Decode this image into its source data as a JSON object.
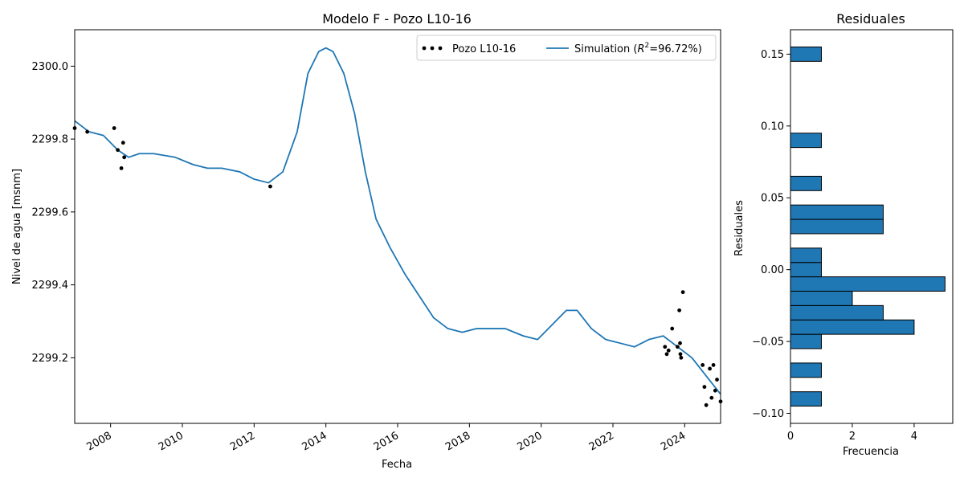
{
  "chart_data": [
    {
      "type": "line",
      "title": "Modelo F - Pozo L10-16",
      "xlabel": "Fecha",
      "ylabel": "Nivel de agua [msnm]",
      "xlim": [
        2007.0,
        2025.0
      ],
      "ylim": [
        2299.02,
        2300.1
      ],
      "x_ticks": [
        "2008",
        "2010",
        "2012",
        "2014",
        "2016",
        "2018",
        "2020",
        "2022",
        "2024"
      ],
      "y_ticks": [
        "2299.2",
        "2299.4",
        "2299.6",
        "2299.8",
        "2300.0"
      ],
      "legend": {
        "position": "top-right",
        "items": [
          "Pozo L10-16",
          "Simulation ($R^2$=96.72%)"
        ]
      },
      "series": [
        {
          "name": "Pozo L10-16",
          "kind": "scatter",
          "color": "#000000",
          "x": [
            2007.0,
            2007.35,
            2008.1,
            2008.2,
            2008.3,
            2008.35,
            2008.38,
            2012.45,
            2023.45,
            2023.5,
            2023.55,
            2023.65,
            2023.8,
            2023.85,
            2023.87,
            2023.88,
            2023.9,
            2023.95,
            2024.5,
            2024.55,
            2024.6,
            2024.7,
            2024.75,
            2024.8,
            2024.85,
            2024.9,
            2025.0
          ],
          "y": [
            2299.83,
            2299.82,
            2299.83,
            2299.77,
            2299.72,
            2299.79,
            2299.75,
            2299.67,
            2299.23,
            2299.21,
            2299.22,
            2299.28,
            2299.23,
            2299.33,
            2299.24,
            2299.21,
            2299.2,
            2299.38,
            2299.18,
            2299.12,
            2299.07,
            2299.17,
            2299.09,
            2299.18,
            2299.11,
            2299.14,
            2299.08
          ]
        },
        {
          "name": "Simulation ($R^2$=96.72%)",
          "kind": "line",
          "color": "#1f77b4",
          "x": [
            2007.0,
            2007.4,
            2007.8,
            2008.2,
            2008.5,
            2008.8,
            2009.2,
            2009.8,
            2010.3,
            2010.7,
            2011.1,
            2011.6,
            2012.0,
            2012.4,
            2012.8,
            2013.2,
            2013.5,
            2013.8,
            2014.0,
            2014.2,
            2014.5,
            2014.8,
            2015.1,
            2015.4,
            2015.8,
            2016.2,
            2016.6,
            2017.0,
            2017.4,
            2017.8,
            2018.2,
            2018.6,
            2019.0,
            2019.5,
            2019.9,
            2020.3,
            2020.7,
            2021.0,
            2021.4,
            2021.8,
            2022.2,
            2022.6,
            2023.0,
            2023.4,
            2023.8,
            2024.2,
            2024.6,
            2025.0
          ],
          "y": [
            2299.85,
            2299.82,
            2299.81,
            2299.77,
            2299.75,
            2299.76,
            2299.76,
            2299.75,
            2299.73,
            2299.72,
            2299.72,
            2299.71,
            2299.69,
            2299.68,
            2299.71,
            2299.82,
            2299.98,
            2300.04,
            2300.05,
            2300.04,
            2299.98,
            2299.87,
            2299.71,
            2299.58,
            2299.5,
            2299.43,
            2299.37,
            2299.31,
            2299.28,
            2299.27,
            2299.28,
            2299.28,
            2299.28,
            2299.26,
            2299.25,
            2299.29,
            2299.33,
            2299.33,
            2299.28,
            2299.25,
            2299.24,
            2299.23,
            2299.25,
            2299.26,
            2299.23,
            2299.2,
            2299.15,
            2299.1
          ]
        }
      ]
    },
    {
      "type": "bar",
      "orientation": "horizontal",
      "title": "Residuales",
      "xlabel": "Frecuencia",
      "ylabel": "Residuales",
      "xlim": [
        0,
        5.25
      ],
      "ylim": [
        -0.107,
        0.167
      ],
      "x_ticks": [
        "0",
        "2",
        "4"
      ],
      "y_ticks": [
        "−0.10",
        "−0.05",
        "0.00",
        "0.05",
        "0.10",
        "0.15"
      ],
      "bars": [
        {
          "bin_low": -0.095,
          "bin_high": -0.085,
          "count": 1
        },
        {
          "bin_low": -0.075,
          "bin_high": -0.065,
          "count": 1
        },
        {
          "bin_low": -0.055,
          "bin_high": -0.045,
          "count": 1
        },
        {
          "bin_low": -0.045,
          "bin_high": -0.035,
          "count": 4
        },
        {
          "bin_low": -0.035,
          "bin_high": -0.025,
          "count": 3
        },
        {
          "bin_low": -0.025,
          "bin_high": -0.015,
          "count": 2
        },
        {
          "bin_low": -0.015,
          "bin_high": -0.005,
          "count": 5
        },
        {
          "bin_low": -0.005,
          "bin_high": 0.005,
          "count": 1
        },
        {
          "bin_low": 0.005,
          "bin_high": 0.015,
          "count": 1
        },
        {
          "bin_low": 0.025,
          "bin_high": 0.035,
          "count": 3
        },
        {
          "bin_low": 0.035,
          "bin_high": 0.045,
          "count": 3
        },
        {
          "bin_low": 0.055,
          "bin_high": 0.065,
          "count": 1
        },
        {
          "bin_low": 0.085,
          "bin_high": 0.095,
          "count": 1
        },
        {
          "bin_low": 0.145,
          "bin_high": 0.155,
          "count": 1
        }
      ],
      "bar_color": "#1f77b4"
    }
  ]
}
